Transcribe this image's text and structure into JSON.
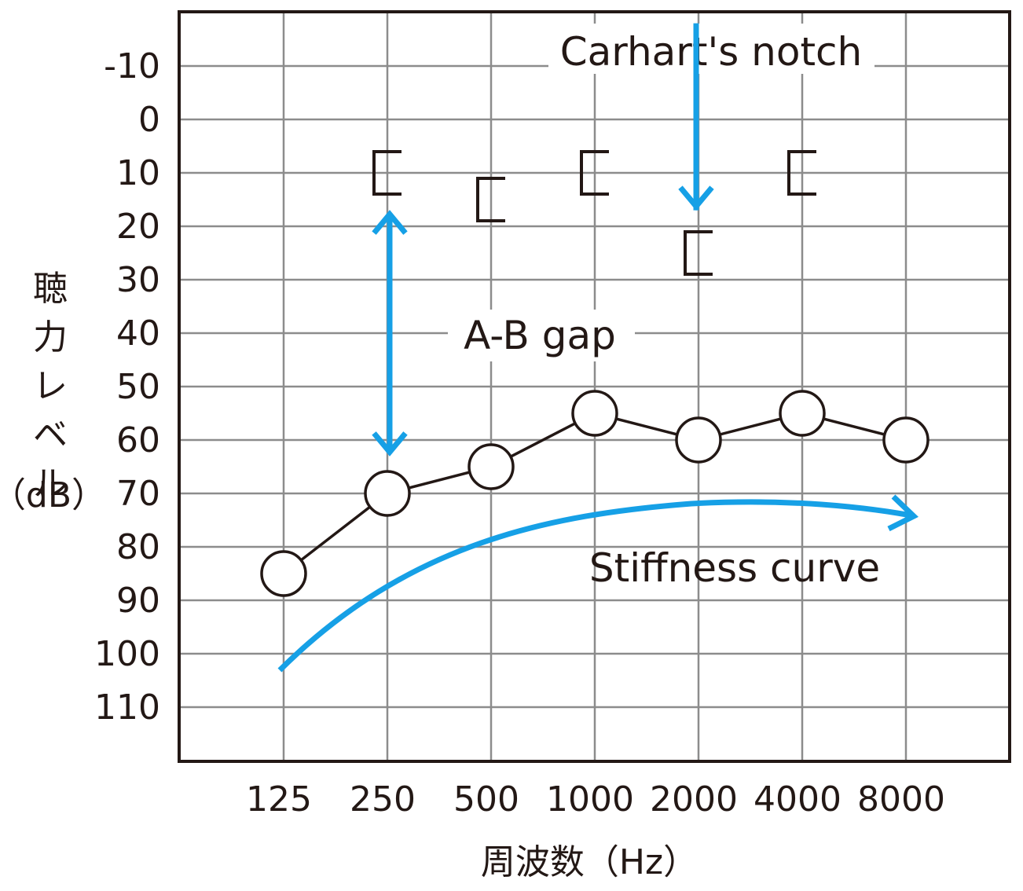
{
  "chart_data": {
    "type": "line",
    "title": "",
    "xlabel": "周波数（Hz）",
    "ylabel": [
      "聴",
      "力",
      "レ",
      "ベ",
      "ル",
      "（dB）"
    ],
    "categories": [
      "125",
      "250",
      "500",
      "1000",
      "2000",
      "4000",
      "8000"
    ],
    "y_ticks": [
      "-10",
      "0",
      "10",
      "20",
      "30",
      "40",
      "50",
      "60",
      "70",
      "80",
      "90",
      "100",
      "110"
    ],
    "ylim": [
      -20,
      120
    ],
    "y_inverted": true,
    "grid": true,
    "series": [
      {
        "marker": "circle",
        "connected": true,
        "x": [
          "125",
          "250",
          "500",
          "1000",
          "2000",
          "4000",
          "8000"
        ],
        "values": [
          85,
          70,
          65,
          55,
          60,
          55,
          60
        ]
      },
      {
        "marker": "bracket",
        "connected": false,
        "x": [
          "250",
          "500",
          "1000",
          "2000",
          "4000"
        ],
        "values": [
          10,
          15,
          10,
          25,
          10
        ]
      }
    ],
    "annotations": {
      "notch": {
        "text": "Carhart's notch",
        "at_x": "2000",
        "arrow_from_y": -18,
        "arrow_to_y": 17
      },
      "gap": {
        "text": "A-B gap",
        "at_x": "250",
        "from_y": 17,
        "to_y": 63
      },
      "stiffness": {
        "text": "Stiffness curve"
      }
    },
    "colors": {
      "annotation": "#16a0e6",
      "line": "#231815",
      "grid": "#8c8c8c"
    }
  }
}
